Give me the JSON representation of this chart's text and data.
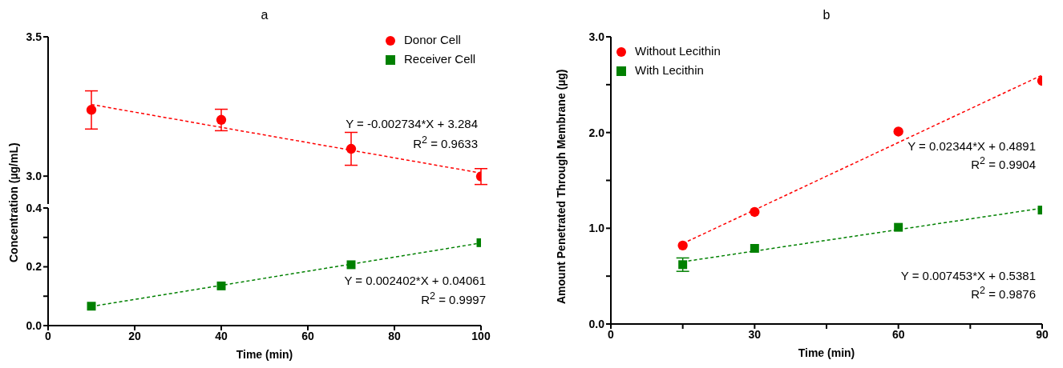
{
  "chart_data": [
    {
      "type": "scatter",
      "title": "a",
      "ylabel": "Concentration (µg/mL)",
      "xlim": [
        0,
        100
      ],
      "ylim": [
        2.9,
        3.5
      ],
      "yticks": [
        {
          "value": 3.0,
          "label": "3.0"
        },
        {
          "value": 3.5,
          "label": "3.5"
        }
      ],
      "tick_labels": "y",
      "legend": "top right",
      "grid": false,
      "series": [
        {
          "name": "Donor Cell",
          "color": "#ff0000",
          "marker": "circle",
          "x": [
            10,
            40,
            70,
            100
          ],
          "values": [
            3.238,
            3.202,
            3.098,
            2.999
          ],
          "errors": [
            [
              3.169,
              3.306
            ],
            [
              3.163,
              3.24
            ],
            [
              3.039,
              3.157
            ],
            [
              2.97,
              3.027
            ]
          ]
        },
        {
          "type": "line",
          "color": "#ff0000",
          "marker": "none",
          "line_style": "dashed",
          "x": [
            10,
            100
          ],
          "values": [
            3.257,
            3.011
          ]
        }
      ],
      "annotations": [
        "Y = -0.002734*X + 3.284",
        "R$^{2}$ = 0.9633"
      ]
    },
    {
      "type": "scatter",
      "xlabel": "Time (min)",
      "xlim": [
        0,
        100
      ],
      "xticks": [
        0,
        20,
        40,
        60,
        80,
        100
      ],
      "ylim": [
        0,
        0.4
      ],
      "yticks": [
        {
          "value": 0,
          "label": "0.0"
        },
        {
          "value": 0.1,
          "label": null
        },
        {
          "value": 0.2,
          "label": "0.2"
        },
        {
          "value": 0.3,
          "label": null
        },
        {
          "value": 0.4,
          "label": "0.4"
        }
      ],
      "legend": "top right",
      "grid": false,
      "series": [
        {
          "name": "Receiver Cell",
          "color": "#008000",
          "marker": "square",
          "x": [
            10,
            40,
            70,
            100
          ],
          "values": [
            0.066,
            0.135,
            0.207,
            0.282
          ]
        },
        {
          "type": "line",
          "color": "#008000",
          "marker": "none",
          "line_style": "dashed",
          "x": [
            10,
            100
          ],
          "values": [
            0.065,
            0.281
          ]
        }
      ],
      "annotations": [
        "Y = 0.002402*X + 0.04061",
        "R$^{2}$ = 0.9997"
      ]
    },
    {
      "type": "scatter",
      "title": "b",
      "xlabel": "Time (min)",
      "ylabel": "Amount Penetrated Through Membrane (µg)",
      "xlim": [
        0,
        90
      ],
      "xticks": [
        0,
        {
          "value": 15,
          "label": null
        },
        30,
        {
          "value": 45,
          "label": null
        },
        60,
        {
          "value": 75,
          "label": null
        },
        90
      ],
      "ylim": [
        0,
        3
      ],
      "yticks": [
        {
          "value": 0,
          "label": "0.0"
        },
        {
          "value": 0.5,
          "label": null
        },
        {
          "value": 1,
          "label": "1.0"
        },
        {
          "value": 1.5,
          "label": null
        },
        {
          "value": 2,
          "label": "2.0"
        },
        {
          "value": 2.5,
          "label": null
        },
        {
          "value": 3,
          "label": "3.0"
        }
      ],
      "legend": "top left",
      "grid": false,
      "series": [
        {
          "name": "Without Lecithin",
          "color": "#ff0000",
          "marker": "circle",
          "x": [
            15,
            30,
            60,
            90
          ],
          "values": [
            0.82,
            1.17,
            2.01,
            2.54
          ]
        },
        {
          "name": "With Lecithin",
          "color": "#008000",
          "marker": "square",
          "x": [
            15,
            30,
            60,
            90
          ],
          "values": [
            0.62,
            0.79,
            1.01,
            1.19
          ],
          "errors": [
            [
              0.55,
              0.69
            ],
            null,
            null,
            null
          ]
        },
        {
          "type": "line",
          "color": "#ff0000",
          "marker": "none",
          "line_style": "dashed",
          "x": [
            15,
            90
          ],
          "values": [
            0.84,
            2.6
          ]
        },
        {
          "type": "line",
          "color": "#008000",
          "marker": "none",
          "line_style": "dashed",
          "x": [
            15,
            90
          ],
          "values": [
            0.65,
            1.21
          ]
        }
      ],
      "annotations": [
        "Y = 0.02344*X + 0.4891",
        "R$^{2}$ = 0.9904",
        "Y = 0.007453*X + 0.5381",
        "R$^{2}$ = 0.9876"
      ]
    }
  ]
}
